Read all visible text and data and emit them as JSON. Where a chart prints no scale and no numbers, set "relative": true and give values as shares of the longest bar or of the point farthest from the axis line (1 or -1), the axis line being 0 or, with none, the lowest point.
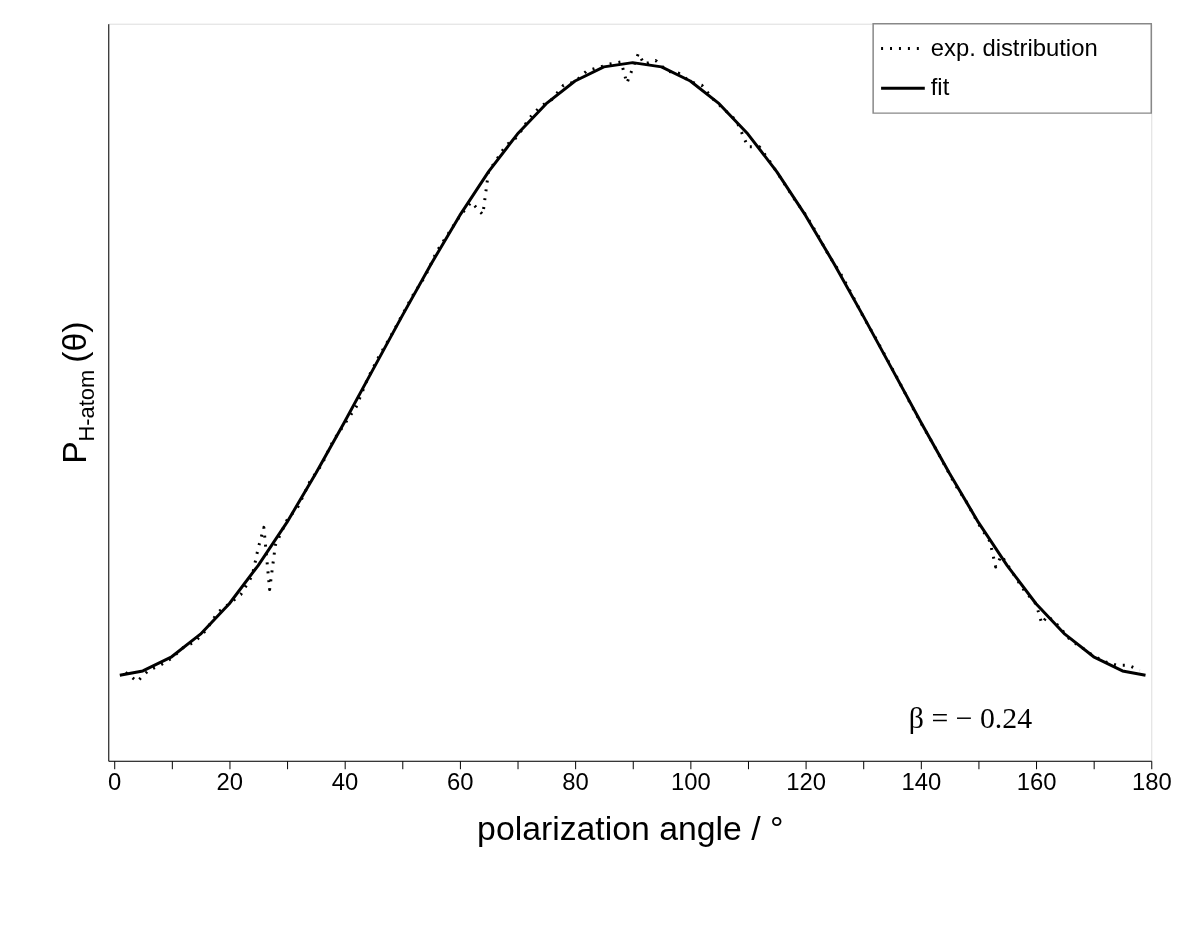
{
  "chart_data": {
    "type": "line",
    "relative": true,
    "xlabel": "polarization angle / °",
    "ylabel": "P$_{H-atom}$(θ)",
    "xlim": [
      -1,
      180
    ],
    "xticks": [
      0,
      {
        "value": 10,
        "label": null
      },
      20,
      {
        "value": 30,
        "label": null
      },
      40,
      {
        "value": 50,
        "label": null
      },
      60,
      {
        "value": 70,
        "label": null
      },
      80,
      {
        "value": 90,
        "label": null
      },
      100,
      {
        "value": 110,
        "label": null
      },
      120,
      {
        "value": 130,
        "label": null
      },
      140,
      {
        "value": 150,
        "label": null
      },
      160,
      {
        "value": 170,
        "label": null
      },
      180
    ],
    "grid": false,
    "legend": "top right",
    "marker": "none",
    "annotations": [
      "β = − 0.24"
    ],
    "series": [
      {
        "name": "exp. distribution",
        "color": "#000000",
        "line_style": "dotted",
        "x": [
          2,
          4,
          6,
          8,
          10,
          12,
          14,
          16,
          18,
          20,
          22,
          24,
          25,
          26,
          27,
          28,
          30,
          32,
          34,
          36,
          38,
          40,
          42,
          44,
          46,
          48,
          50,
          52,
          54,
          56,
          58,
          60,
          62,
          64,
          65,
          66,
          68,
          70,
          72,
          74,
          76,
          78,
          80,
          82,
          84,
          86,
          88,
          89,
          91,
          92,
          94,
          96,
          98,
          100,
          102,
          104,
          106,
          108,
          110,
          112,
          114,
          116,
          118,
          120,
          122,
          124,
          126,
          128,
          130,
          132,
          134,
          136,
          138,
          140,
          142,
          144,
          146,
          148,
          150,
          152,
          153,
          154,
          156,
          158,
          160,
          161,
          162,
          164,
          166,
          168,
          170,
          172,
          174,
          176,
          178
        ],
        "values": [
          0.125,
          0.112,
          0.128,
          0.135,
          0.145,
          0.16,
          0.168,
          0.185,
          0.21,
          0.222,
          0.235,
          0.262,
          0.3,
          0.33,
          0.242,
          0.305,
          0.34,
          0.36,
          0.395,
          0.418,
          0.452,
          0.476,
          0.5,
          0.54,
          0.572,
          0.6,
          0.63,
          0.66,
          0.685,
          0.72,
          0.745,
          0.77,
          0.79,
          0.772,
          0.834,
          0.845,
          0.87,
          0.882,
          0.908,
          0.925,
          0.935,
          0.955,
          0.96,
          0.975,
          0.98,
          0.985,
          0.988,
          0.958,
          1.0,
          0.985,
          0.99,
          0.975,
          0.972,
          0.96,
          0.955,
          0.935,
          0.92,
          0.905,
          0.868,
          0.868,
          0.845,
          0.82,
          0.795,
          0.772,
          0.745,
          0.715,
          0.69,
          0.66,
          0.628,
          0.6,
          0.57,
          0.54,
          0.508,
          0.478,
          0.45,
          0.42,
          0.39,
          0.365,
          0.335,
          0.31,
          0.274,
          0.29,
          0.265,
          0.24,
          0.222,
          0.194,
          0.205,
          0.19,
          0.17,
          0.16,
          0.148,
          0.14,
          0.135,
          0.135,
          0.128
        ]
      },
      {
        "name": "fit",
        "color": "#000000",
        "line_style": "solid",
        "x": [
          1,
          5,
          10,
          15,
          20,
          25,
          30,
          35,
          40,
          45,
          50,
          55,
          60,
          65,
          70,
          75,
          80,
          85,
          90,
          95,
          100,
          105,
          110,
          115,
          120,
          125,
          130,
          135,
          140,
          145,
          150,
          155,
          160,
          165,
          170,
          175,
          179
        ],
        "values": [
          0.121,
          0.127,
          0.147,
          0.179,
          0.222,
          0.276,
          0.337,
          0.406,
          0.479,
          0.554,
          0.629,
          0.702,
          0.771,
          0.833,
          0.886,
          0.929,
          0.961,
          0.981,
          0.987,
          0.981,
          0.961,
          0.929,
          0.886,
          0.833,
          0.771,
          0.702,
          0.629,
          0.554,
          0.479,
          0.406,
          0.337,
          0.276,
          0.222,
          0.179,
          0.147,
          0.127,
          0.121
        ]
      }
    ]
  }
}
